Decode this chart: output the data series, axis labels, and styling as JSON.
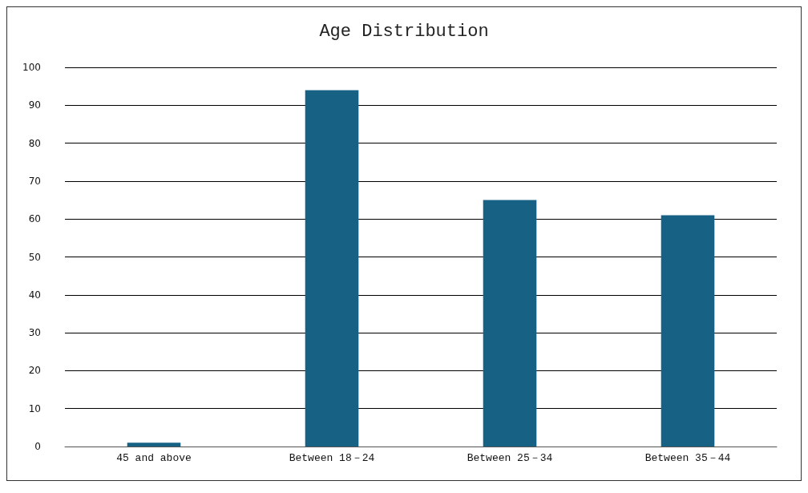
{
  "chart_data": {
    "type": "bar",
    "title": "Age Distribution",
    "categories": [
      "45 and above",
      "Between 18－24",
      "Between 25－34",
      "Between 35－44"
    ],
    "values": [
      1,
      94,
      65,
      61
    ],
    "color": "#176284",
    "ylim": [
      0,
      100
    ],
    "yticks": [
      0,
      10,
      20,
      30,
      40,
      50,
      60,
      70,
      80,
      90,
      100
    ],
    "grid": "y"
  }
}
